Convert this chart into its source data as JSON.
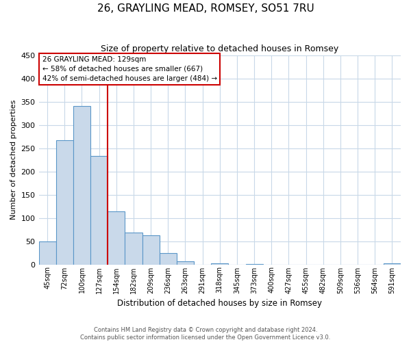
{
  "title": "26, GRAYLING MEAD, ROMSEY, SO51 7RU",
  "subtitle": "Size of property relative to detached houses in Romsey",
  "xlabel": "Distribution of detached houses by size in Romsey",
  "ylabel": "Number of detached properties",
  "bar_labels": [
    "45sqm",
    "72sqm",
    "100sqm",
    "127sqm",
    "154sqm",
    "182sqm",
    "209sqm",
    "236sqm",
    "263sqm",
    "291sqm",
    "318sqm",
    "345sqm",
    "373sqm",
    "400sqm",
    "427sqm",
    "455sqm",
    "482sqm",
    "509sqm",
    "536sqm",
    "564sqm",
    "591sqm"
  ],
  "bar_values": [
    50,
    267,
    340,
    233,
    114,
    68,
    62,
    25,
    7,
    0,
    2,
    0,
    1,
    0,
    0,
    0,
    0,
    0,
    0,
    0,
    2
  ],
  "bar_color": "#c9d9ea",
  "bar_edge_color": "#5a96c8",
  "vline_color": "#cc0000",
  "annotation_title": "26 GRAYLING MEAD: 129sqm",
  "annotation_line1": "← 58% of detached houses are smaller (667)",
  "annotation_line2": "42% of semi-detached houses are larger (484) →",
  "annotation_box_edge": "#cc0000",
  "ylim": [
    0,
    450
  ],
  "yticks": [
    0,
    50,
    100,
    150,
    200,
    250,
    300,
    350,
    400,
    450
  ],
  "footer1": "Contains HM Land Registry data © Crown copyright and database right 2024.",
  "footer2": "Contains public sector information licensed under the Open Government Licence v3.0.",
  "bg_color": "#ffffff",
  "grid_color": "#c8d8e8"
}
